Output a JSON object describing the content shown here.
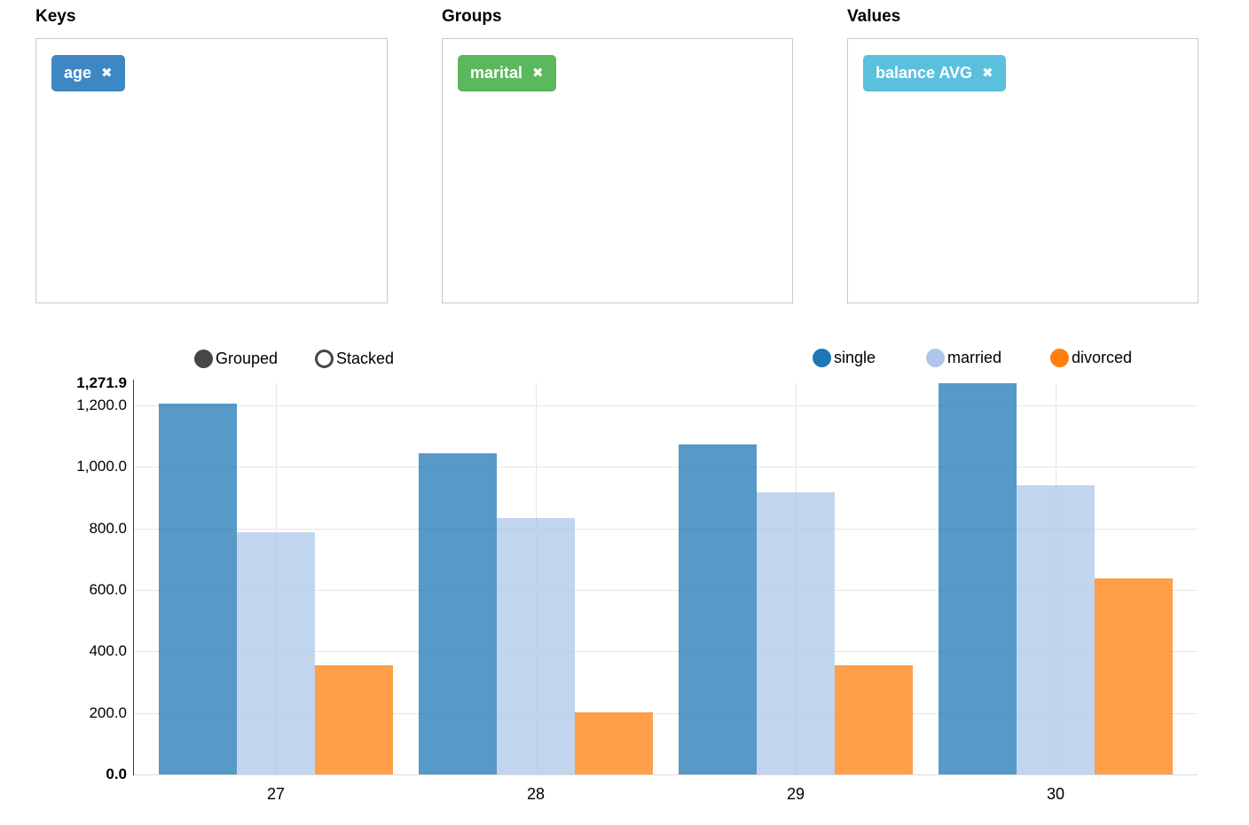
{
  "panels": [
    {
      "label": "Keys",
      "tags": [
        {
          "text": "age",
          "remove_icon": "✖",
          "color": "#3e87c5"
        }
      ]
    },
    {
      "label": "Groups",
      "tags": [
        {
          "text": "marital",
          "remove_icon": "✖",
          "color": "#5cb85c"
        }
      ]
    },
    {
      "label": "Values",
      "tags": [
        {
          "text": "balance AVG",
          "remove_icon": "✖",
          "color": "#5bc0de"
        }
      ]
    }
  ],
  "chart_controls": [
    {
      "label": "Grouped",
      "selected": true
    },
    {
      "label": "Stacked",
      "selected": false
    }
  ],
  "chart_data": {
    "type": "bar",
    "mode": "grouped",
    "title": "",
    "xlabel": "",
    "ylabel": "",
    "categories": [
      "27",
      "28",
      "29",
      "30"
    ],
    "series": [
      {
        "name": "single",
        "color": "#1f77b4",
        "values": [
          1205,
          1043,
          1074,
          1271.9
        ]
      },
      {
        "name": "married",
        "color": "#aec7e8",
        "values": [
          788,
          833,
          918,
          939
        ]
      },
      {
        "name": "divorced",
        "color": "#ff7f0e",
        "values": [
          354,
          203,
          354,
          638
        ]
      }
    ],
    "ylim": [
      0,
      1271.9
    ],
    "y_ticks": [
      {
        "label": "0.0",
        "value": 0,
        "bold": true
      },
      {
        "label": "200.0",
        "value": 200,
        "bold": false
      },
      {
        "label": "400.0",
        "value": 400,
        "bold": false
      },
      {
        "label": "600.0",
        "value": 600,
        "bold": false
      },
      {
        "label": "800.0",
        "value": 800,
        "bold": false
      },
      {
        "label": "1,000.0",
        "value": 1000,
        "bold": false
      },
      {
        "label": "1,200.0",
        "value": 1200,
        "bold": false
      },
      {
        "label": "1,271.9",
        "value": 1271.9,
        "bold": true
      }
    ],
    "grid": true,
    "legend_position": "top-right",
    "controls_position": "top-left"
  }
}
